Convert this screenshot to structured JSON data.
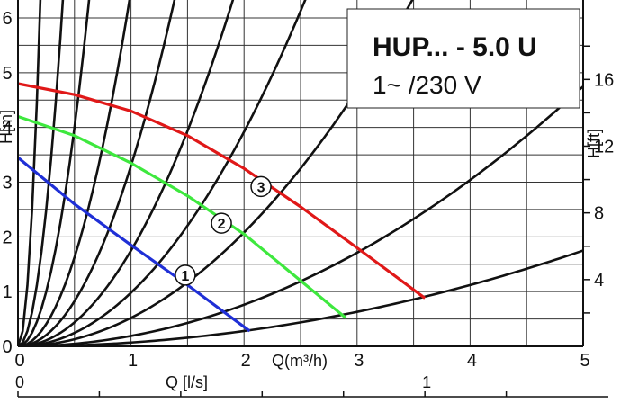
{
  "chart_data": {
    "type": "line",
    "title": "HUP... - 5.0 U",
    "subtitle": "1~ /230 V",
    "x_axis": {
      "label": "Q(m³/h)",
      "range": [
        0,
        5
      ],
      "ticks": [
        "0",
        "1",
        "2",
        "3",
        "4",
        "5"
      ]
    },
    "x2_axis": {
      "label": "Q [l/s]",
      "ticks": [
        "0",
        "1"
      ],
      "tick_values_m3h": [
        0,
        3.6
      ]
    },
    "y_axis": {
      "label": "H[m]",
      "range": [
        0,
        6
      ],
      "ticks": [
        "0",
        "1",
        "2",
        "3",
        "4",
        "5",
        "6"
      ]
    },
    "y2_axis": {
      "label": "H[ft]",
      "ticks": [
        "4",
        "8",
        "12",
        "16"
      ]
    },
    "grid": true,
    "series": [
      {
        "marker": "1",
        "color": "#1f2fd6",
        "x": [
          0,
          0.5,
          1.0,
          1.5,
          2.05
        ],
        "y": [
          3.45,
          2.6,
          1.85,
          1.12,
          0.28
        ]
      },
      {
        "marker": "2",
        "color": "#3ee83e",
        "x": [
          0,
          0.5,
          1.0,
          1.5,
          2.0,
          2.5,
          2.9
        ],
        "y": [
          4.2,
          3.85,
          3.35,
          2.75,
          2.05,
          1.2,
          0.52
        ]
      },
      {
        "marker": "3",
        "color": "#e01818",
        "x": [
          0,
          0.5,
          1.0,
          1.5,
          2.0,
          2.5,
          3.0,
          3.6
        ],
        "y": [
          4.8,
          4.6,
          4.3,
          3.85,
          3.25,
          2.55,
          1.8,
          0.88
        ]
      }
    ],
    "series_markers": [
      {
        "label": "1",
        "x": 1.48,
        "y": 1.3
      },
      {
        "label": "2",
        "x": 1.8,
        "y": 2.25
      },
      {
        "label": "3",
        "x": 2.15,
        "y": 2.92
      }
    ],
    "system_curve_coefficients": [
      160,
      40,
      16,
      6.5,
      3.3,
      1.75,
      0.98,
      0.52,
      0.19,
      0.07
    ]
  }
}
